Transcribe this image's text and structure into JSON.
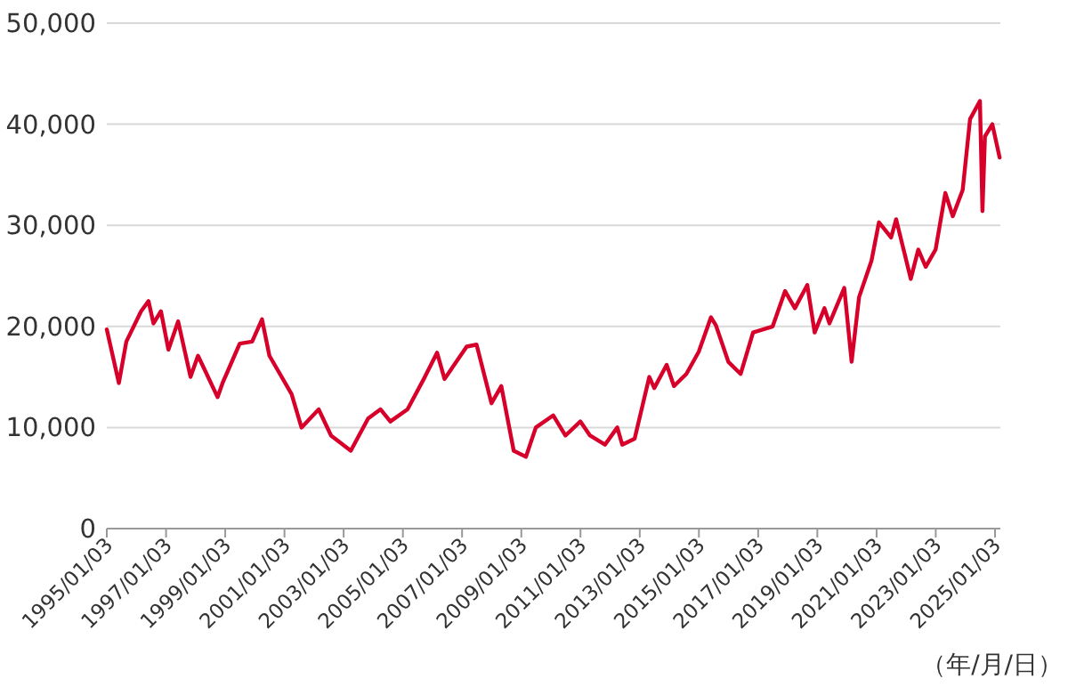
{
  "chart_data": {
    "type": "line",
    "xlabel": "（年/月/日）",
    "x": [
      "1995-01-03",
      "1995-06",
      "1995-09",
      "1996-03",
      "1996-06",
      "1996-08",
      "1996-11",
      "1997-02",
      "1997-06",
      "1997-11",
      "1998-02",
      "1998-05",
      "1998-10",
      "1998-12",
      "1999-07",
      "1999-12",
      "2000-04",
      "2000-07",
      "2001-04",
      "2001-08",
      "2002-03",
      "2002-08",
      "2003-04",
      "2003-11",
      "2004-04",
      "2004-08",
      "2005-03",
      "2005-10",
      "2006-03",
      "2006-06",
      "2007-03",
      "2007-07",
      "2008-01",
      "2008-05",
      "2008-10",
      "2009-03",
      "2009-07",
      "2010-02",
      "2010-07",
      "2011-01",
      "2011-05",
      "2011-11",
      "2012-04",
      "2012-06",
      "2012-11",
      "2013-05",
      "2013-07",
      "2013-12",
      "2014-03",
      "2014-08",
      "2015-01",
      "2015-06",
      "2015-08",
      "2016-01",
      "2016-06",
      "2016-11",
      "2017-07",
      "2017-12",
      "2018-04",
      "2018-09",
      "2018-12",
      "2019-04",
      "2019-06",
      "2019-12",
      "2020-03",
      "2020-06",
      "2020-11",
      "2021-02",
      "2021-07",
      "2021-09",
      "2022-03",
      "2022-06",
      "2022-09",
      "2023-01",
      "2023-05",
      "2023-08",
      "2023-12",
      "2024-03",
      "2024-07",
      "2024-08",
      "2024-09",
      "2024-12",
      "2025-03"
    ],
    "series": [
      {
        "color": "#d7002a",
        "values": [
          19700,
          14400,
          18500,
          21500,
          22500,
          20300,
          21500,
          17700,
          20500,
          15000,
          17100,
          15600,
          13000,
          14400,
          18300,
          18500,
          20700,
          17100,
          13300,
          10000,
          11800,
          9200,
          7700,
          10900,
          11800,
          10600,
          11800,
          15000,
          17400,
          14800,
          18000,
          18200,
          12400,
          14100,
          7700,
          7100,
          10000,
          11200,
          9200,
          10600,
          9200,
          8300,
          10000,
          8300,
          8900,
          15000,
          13900,
          16200,
          14100,
          15300,
          17500,
          20900,
          20100,
          16500,
          15300,
          19400,
          20000,
          23500,
          21800,
          24100,
          19400,
          21800,
          20300,
          23800,
          16500,
          22900,
          26500,
          30300,
          28800,
          30600,
          24700,
          27600,
          25900,
          27600,
          33200,
          30900,
          33500,
          40500,
          42300,
          31400,
          38800,
          40000,
          36700
        ]
      }
    ],
    "xlim": [
      "1995-01-03",
      "2025-03-10"
    ],
    "xticks": [
      {
        "value": "1995-01-03",
        "label": "1995/01/03"
      },
      {
        "value": "1997-01-03",
        "label": "1997/01/03"
      },
      {
        "value": "1999-01-03",
        "label": "1999/01/03"
      },
      {
        "value": "2001-01-03",
        "label": "2001/01/03"
      },
      {
        "value": "2003-01-03",
        "label": "2003/01/03"
      },
      {
        "value": "2005-01-03",
        "label": "2005/01/03"
      },
      {
        "value": "2007-01-03",
        "label": "2007/01/03"
      },
      {
        "value": "2009-01-03",
        "label": "2009/01/03"
      },
      {
        "value": "2011-01-03",
        "label": "2011/01/03"
      },
      {
        "value": "2013-01-03",
        "label": "2013/01/03"
      },
      {
        "value": "2015-01-03",
        "label": "2015/01/03"
      },
      {
        "value": "2017-01-03",
        "label": "2017/01/03"
      },
      {
        "value": "2019-01-03",
        "label": "2019/01/03"
      },
      {
        "value": "2021-01-03",
        "label": "2021/01/03"
      },
      {
        "value": "2023-01-03",
        "label": "2023/01/03"
      },
      {
        "value": "2025-01-03",
        "label": "2025/01/03"
      }
    ],
    "ylim": [
      0,
      50000
    ],
    "yticks": [
      0,
      {
        "value": 10000,
        "label": "10,000"
      },
      {
        "value": 20000,
        "label": "20,000"
      },
      {
        "value": 30000,
        "label": "30,000"
      },
      {
        "value": 40000,
        "label": "40,000"
      },
      {
        "value": 50000,
        "label": "50,000"
      }
    ],
    "grid": "y",
    "marker": "none",
    "line_style": "solid"
  }
}
